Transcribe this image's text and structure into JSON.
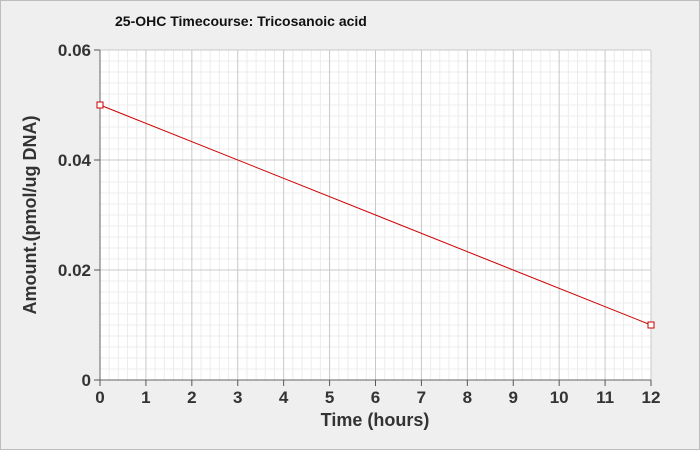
{
  "chart_data": {
    "type": "line",
    "title": "25-OHC Timecourse: Tricosanoic acid",
    "xlabel": "Time (hours)",
    "ylabel": "Amount.(pmol/ug DNA)",
    "xlim": [
      0,
      12
    ],
    "ylim": [
      0,
      0.06
    ],
    "xticks": [
      "0",
      "1",
      "2",
      "3",
      "4",
      "5",
      "6",
      "7",
      "8",
      "9",
      "10",
      "11",
      "12"
    ],
    "yticks": [
      "0",
      "0.02",
      "0.04",
      "0.06"
    ],
    "grid": true,
    "series": [
      {
        "x": [
          0,
          12
        ],
        "y": [
          0.05,
          0.01
        ],
        "color": "#cc0000",
        "marker": "square"
      }
    ]
  }
}
